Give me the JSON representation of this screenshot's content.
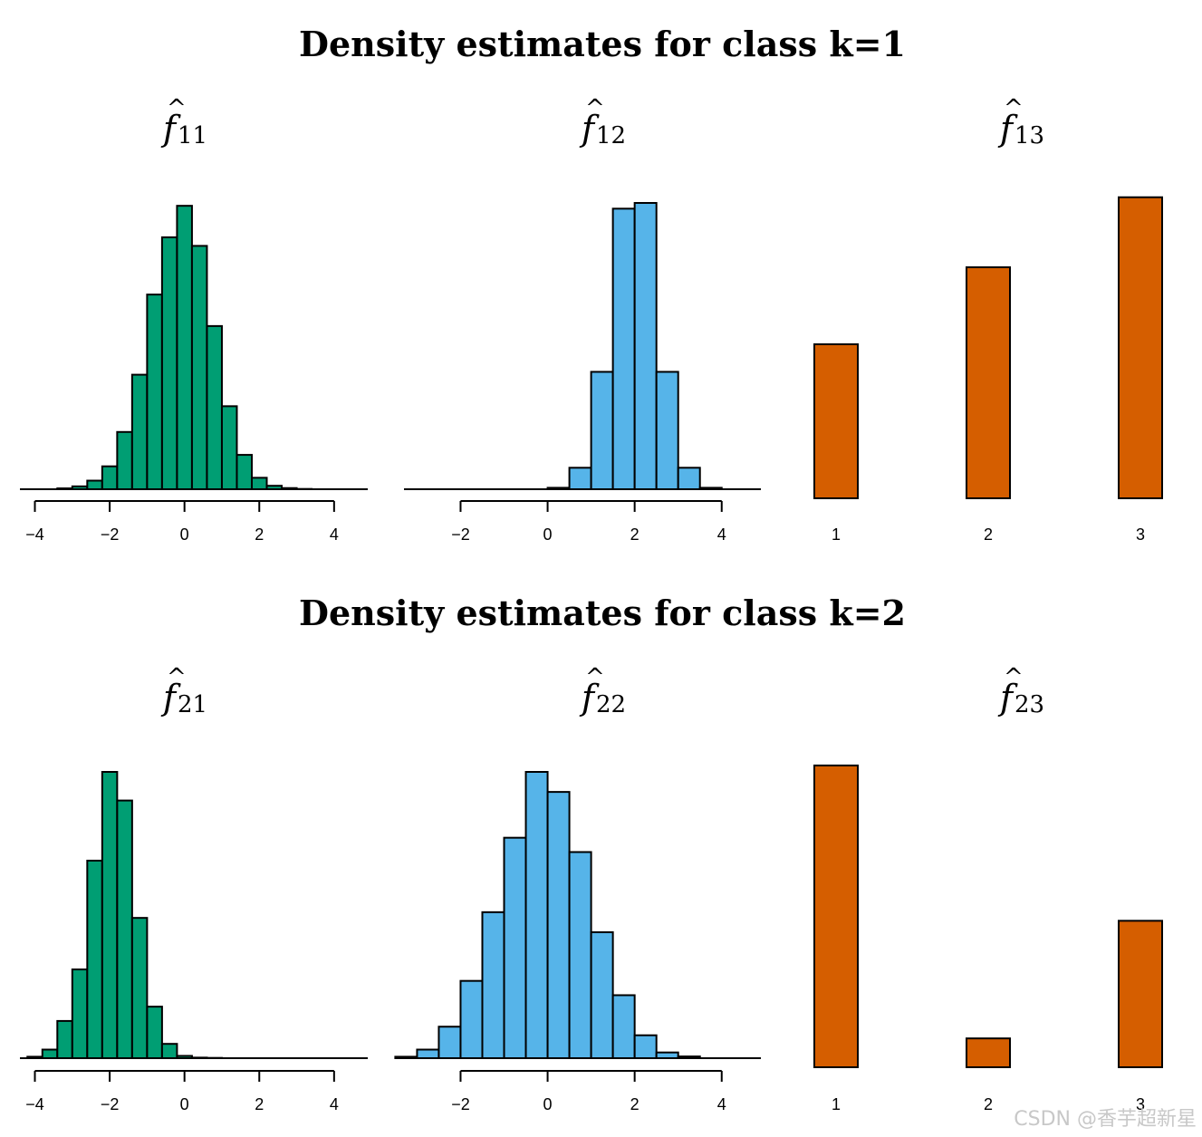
{
  "rows": [
    {
      "title": "Density estimates for class k=1",
      "panels": [
        {
          "title_main": "f",
          "title_sub": "11"
        },
        {
          "title_main": "f",
          "title_sub": "12"
        },
        {
          "title_main": "f",
          "title_sub": "13"
        }
      ]
    },
    {
      "title": "Density estimates for class k=2",
      "panels": [
        {
          "title_main": "f",
          "title_sub": "21"
        },
        {
          "title_main": "f",
          "title_sub": "22"
        },
        {
          "title_main": "f",
          "title_sub": "23"
        }
      ]
    }
  ],
  "colors": {
    "green": "#009E73",
    "blue": "#56B4E9",
    "orange": "#D55E00",
    "stroke": "#000000"
  },
  "chart_data": [
    {
      "type": "bar",
      "name_ref": "f11",
      "kind": "histogram",
      "bin_width": 0.4,
      "bin_starts": [
        -3.4,
        -3.0,
        -2.6,
        -2.2,
        -1.8,
        -1.4,
        -1.0,
        -0.6,
        -0.2,
        0.2,
        0.6,
        1.0,
        1.4,
        1.8,
        2.2,
        2.6,
        3.0
      ],
      "values": [
        0.003,
        0.01,
        0.03,
        0.08,
        0.2,
        0.4,
        0.68,
        0.88,
        0.99,
        0.85,
        0.57,
        0.29,
        0.12,
        0.04,
        0.012,
        0.004,
        0.001
      ],
      "xticks": [
        -4,
        -2,
        0,
        2,
        4
      ],
      "xlim": [
        -4.4,
        4.9
      ],
      "ylim": [
        0,
        1.0
      ],
      "color": "#009E73"
    },
    {
      "type": "bar",
      "name_ref": "f12",
      "kind": "histogram",
      "bin_width": 0.5,
      "bin_starts": [
        0.0,
        0.5,
        1.0,
        1.5,
        2.0,
        2.5,
        3.0,
        3.5
      ],
      "values": [
        0.005,
        0.075,
        0.41,
        0.98,
        1.0,
        0.41,
        0.075,
        0.005
      ],
      "xticks": [
        -2,
        0,
        2,
        4
      ],
      "xlim": [
        -3.3,
        4.9
      ],
      "ylim": [
        0,
        1.0
      ],
      "color": "#56B4E9"
    },
    {
      "type": "bar",
      "name_ref": "f13",
      "kind": "bar",
      "categories": [
        "1",
        "2",
        "3"
      ],
      "values": [
        0.22,
        0.33,
        0.43
      ],
      "ylim": [
        0,
        0.44
      ],
      "color": "#D55E00"
    },
    {
      "type": "bar",
      "name_ref": "f21",
      "kind": "histogram",
      "bin_width": 0.4,
      "bin_starts": [
        -4.2,
        -3.8,
        -3.4,
        -3.0,
        -2.6,
        -2.2,
        -1.8,
        -1.4,
        -1.0,
        -0.6,
        -0.2,
        0.2,
        0.6
      ],
      "values": [
        0.005,
        0.03,
        0.13,
        0.31,
        0.69,
        1.0,
        0.9,
        0.49,
        0.18,
        0.05,
        0.008,
        0.002,
        0.001
      ],
      "xticks": [
        -4,
        -2,
        0,
        2,
        4
      ],
      "xlim": [
        -4.4,
        4.9
      ],
      "ylim": [
        0,
        1.0
      ],
      "color": "#009E73"
    },
    {
      "type": "bar",
      "name_ref": "f22",
      "kind": "histogram",
      "bin_width": 0.5,
      "bin_starts": [
        -3.5,
        -3.0,
        -2.5,
        -2.0,
        -1.5,
        -1.0,
        -0.5,
        0.0,
        0.5,
        1.0,
        1.5,
        2.0,
        2.5,
        3.0
      ],
      "values": [
        0.005,
        0.03,
        0.11,
        0.27,
        0.51,
        0.77,
        1.0,
        0.93,
        0.72,
        0.44,
        0.22,
        0.08,
        0.02,
        0.006
      ],
      "xticks": [
        -2,
        0,
        2,
        4
      ],
      "xlim": [
        -3.3,
        4.9
      ],
      "ylim": [
        0,
        1.0
      ],
      "color": "#56B4E9"
    },
    {
      "type": "bar",
      "name_ref": "f23",
      "kind": "bar",
      "categories": [
        "1",
        "2",
        "3"
      ],
      "values": [
        0.68,
        0.065,
        0.33
      ],
      "ylim": [
        0,
        0.69
      ],
      "color": "#D55E00"
    }
  ],
  "watermark": "CSDN @香芋超新星"
}
